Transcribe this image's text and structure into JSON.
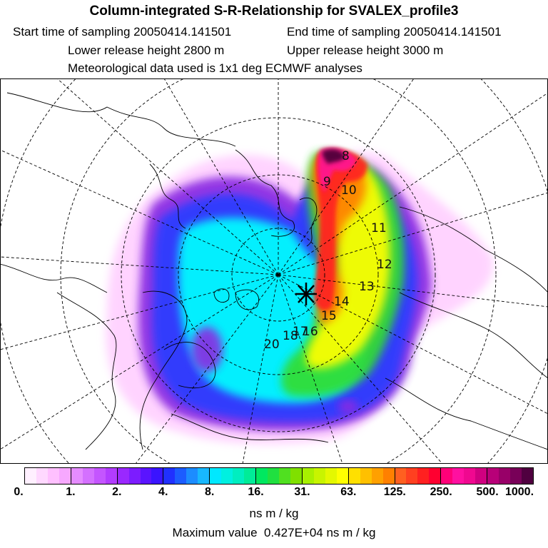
{
  "header": {
    "title": "Column-integrated S-R-Relationship for SVALEX_profile3",
    "start_time": "Start time of sampling 20050414.141501",
    "end_time": "End time of sampling 20050414.141501",
    "lower_release": "Lower release height 2800 m",
    "upper_release": "Upper release height 3000 m",
    "met_data": "Meteorological data used is 1x1 deg ECMWF analyses"
  },
  "map": {
    "day_labels": [
      "8",
      "9",
      "10",
      "11",
      "12",
      "13",
      "14",
      "15",
      "16",
      "17",
      "18",
      "20"
    ],
    "plume_colors": [
      "#ffccff",
      "#cc66ff",
      "#8a2be2",
      "#2a3cff",
      "#1e90ff",
      "#2fd8ff",
      "#00ffff",
      "#00f0a0",
      "#33dd33",
      "#99e000",
      "#ffff00",
      "#ffcc00",
      "#ff8000",
      "#ff2020",
      "#ff1493",
      "#9c0077",
      "#4a0038"
    ]
  },
  "colorbar": {
    "tick_labels": [
      "0.",
      "1.",
      "2.",
      "4.",
      "8.",
      "16.",
      "31.",
      "63.",
      "125.",
      "250.",
      "500.",
      "1000."
    ],
    "segments": [
      [
        "#fff0ff",
        "#ffd8ff",
        "#ffc0ff",
        "#f7a8ff"
      ],
      [
        "#e58cff",
        "#d470ff",
        "#c455ff",
        "#b23cff"
      ],
      [
        "#9a28ff",
        "#7c1cff",
        "#5a14ff",
        "#3a14ff"
      ],
      [
        "#2030ff",
        "#1c5cff",
        "#1c8cff",
        "#18b8ff"
      ],
      [
        "#00e8ff",
        "#00f0e0",
        "#00eec0",
        "#00ec98"
      ],
      [
        "#00e860",
        "#20e040",
        "#50e020",
        "#80e000"
      ],
      [
        "#a8f000",
        "#c8f400",
        "#e4f800",
        "#ffff00"
      ],
      [
        "#ffe000",
        "#ffc000",
        "#ffa000",
        "#ff8000"
      ],
      [
        "#ff6020",
        "#ff4020",
        "#ff2020",
        "#ff0030"
      ],
      [
        "#ff0078",
        "#ff10a0",
        "#f00890",
        "#d00080"
      ],
      [
        "#b80078",
        "#980068",
        "#780058",
        "#500040"
      ]
    ],
    "unit": "ns m / kg",
    "max_value": "Maximum value  0.427E+04 ns m / kg"
  }
}
